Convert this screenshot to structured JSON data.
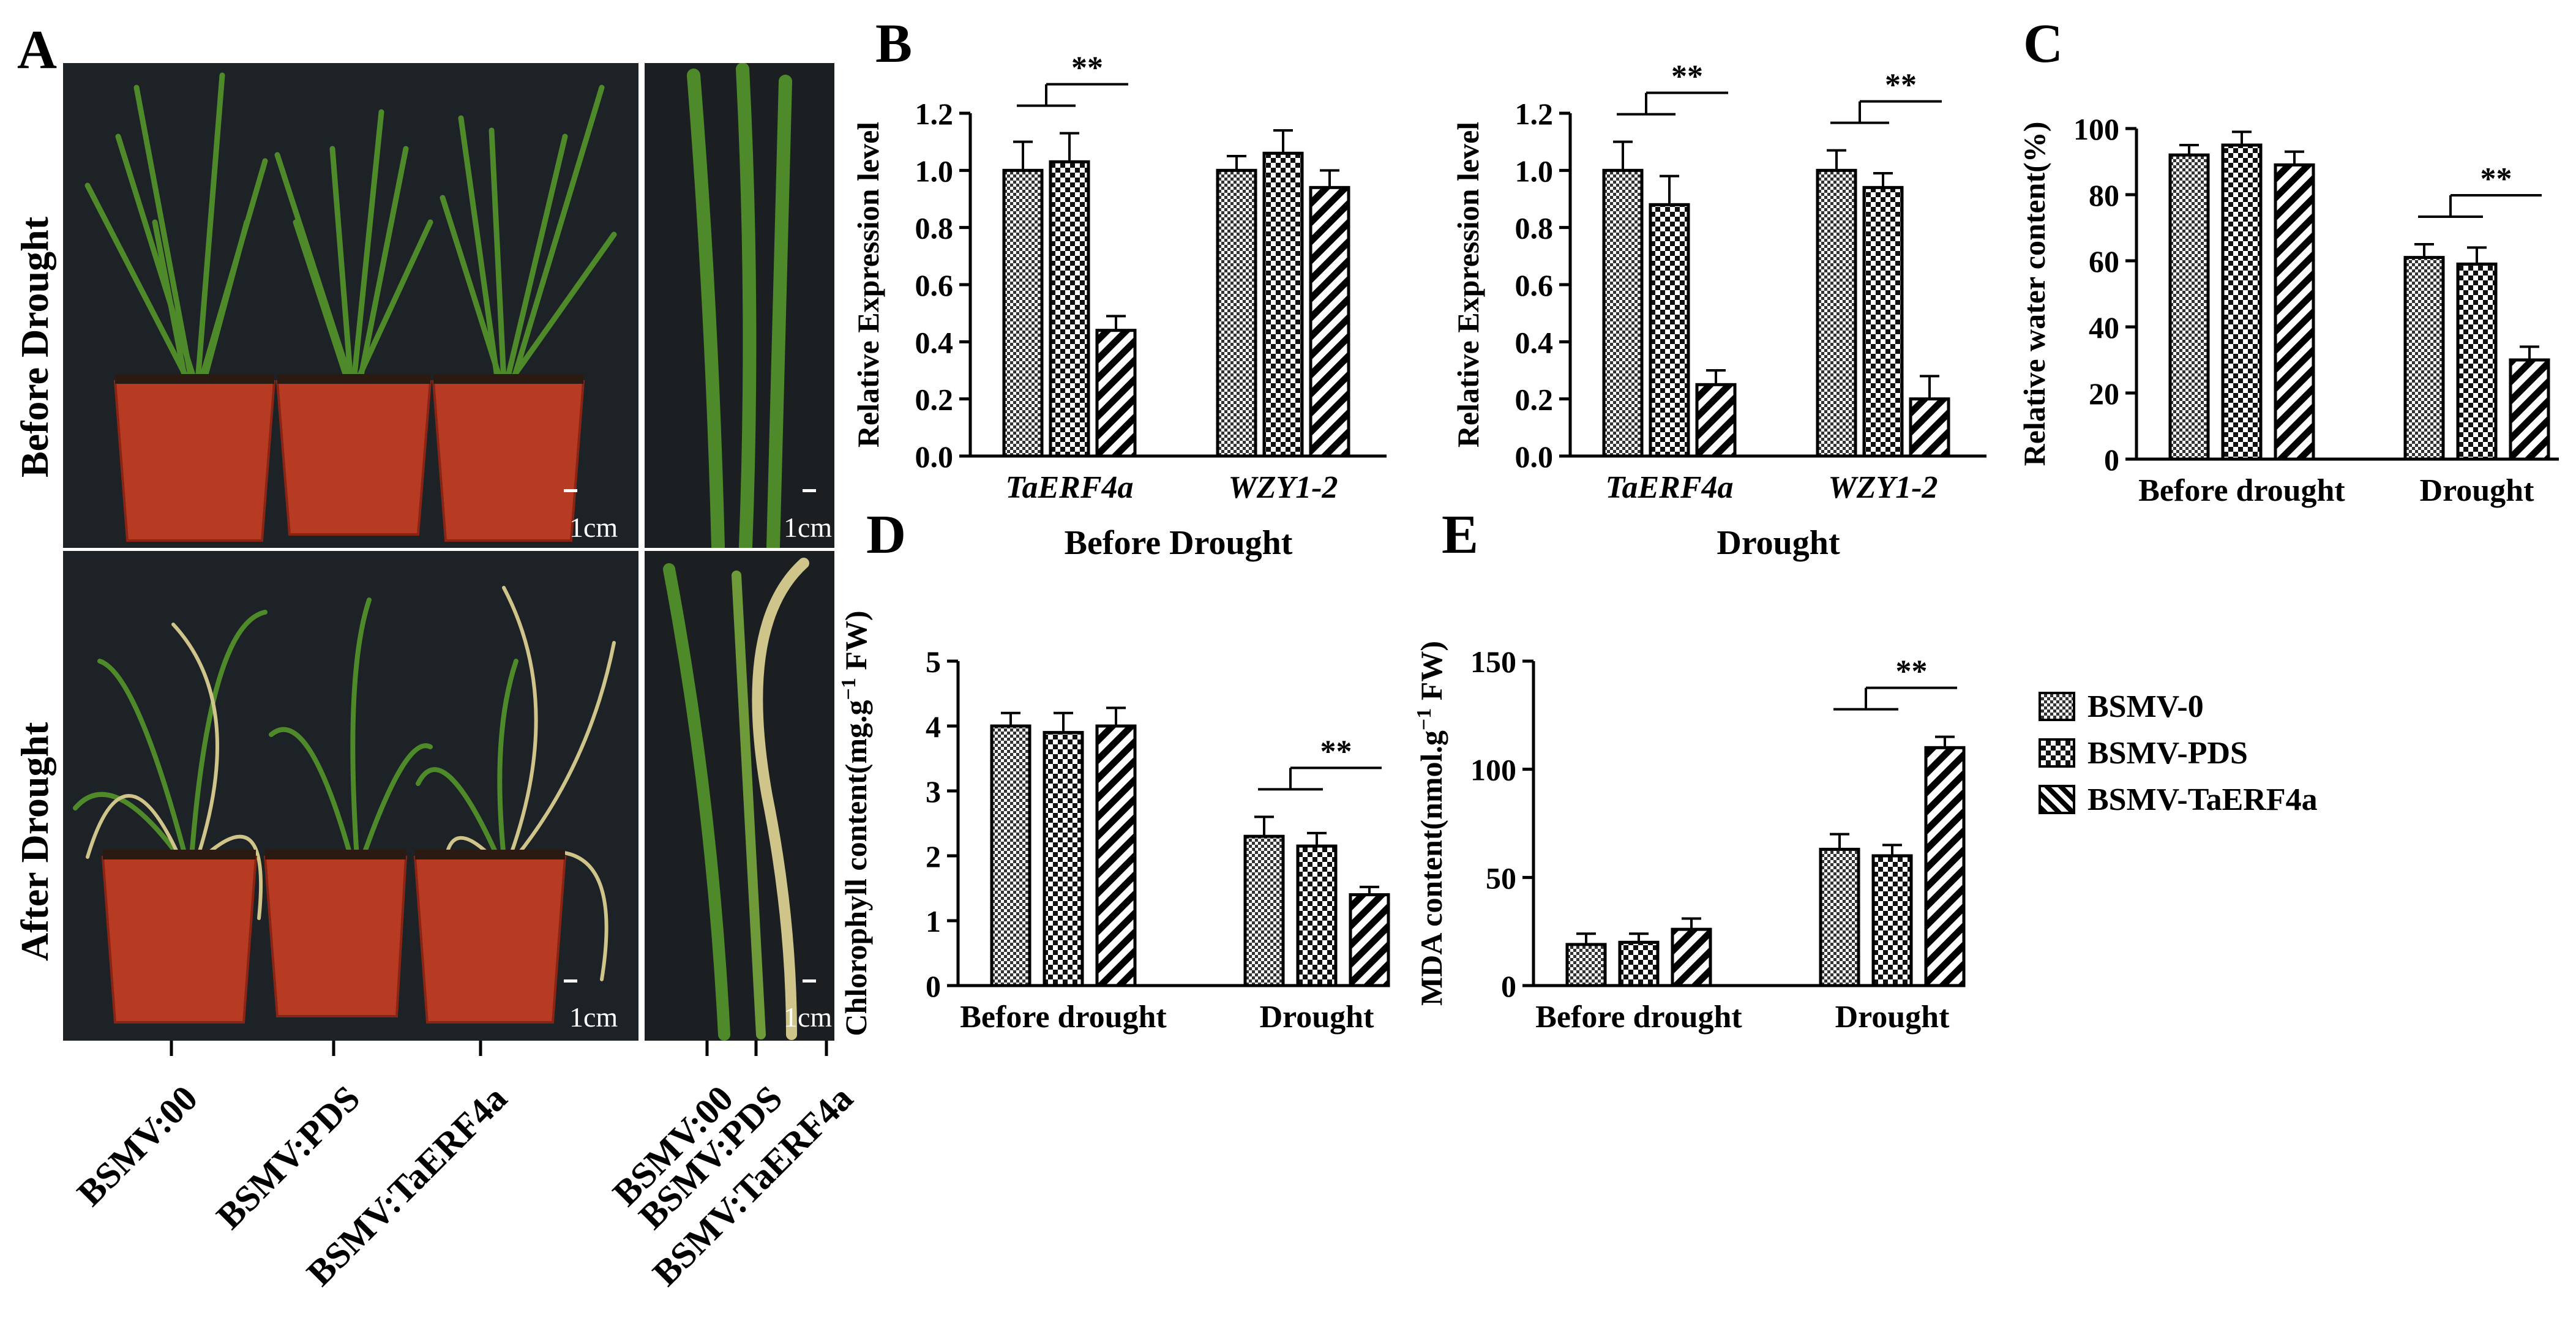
{
  "panel_letters": {
    "a": "A",
    "b": "B",
    "c": "C",
    "d": "D",
    "e": "E"
  },
  "panel_a": {
    "row_labels": [
      "Before Drought",
      "After Drought"
    ],
    "scale_bar": "1cm",
    "pot_lanes": [
      "BSMV:00",
      "BSMV:PDS",
      "BSMV:TaERF4a"
    ],
    "leaf_lanes": [
      "BSMV:00",
      "BSMV:PDS",
      "BSMV:TaERF4a"
    ]
  },
  "legend": {
    "items": [
      {
        "label": "BSMV-0",
        "pattern": "checker"
      },
      {
        "label": "BSMV-PDS",
        "pattern": "check-large"
      },
      {
        "label": "BSMV-TaERF4a",
        "pattern": "diag"
      }
    ]
  },
  "colors": {
    "bar_stroke": "#000000",
    "photo_bg": "#1d2226",
    "pot": "#b73a22",
    "leaf": "#4f8a2a",
    "dry_leaf": "#cfc48a"
  },
  "chart_data": [
    {
      "id": "B1",
      "type": "bar",
      "ylabel": "Relative Expression level",
      "xlabel": "Before Drought",
      "ylim": [
        0,
        1.2
      ],
      "yticks": [
        "0.0",
        "0.2",
        "0.4",
        "0.6",
        "0.8",
        "1.0",
        "1.2"
      ],
      "categories": [
        "TaERF4a",
        "WZY1-2"
      ],
      "category_style": "italic",
      "series": [
        {
          "name": "BSMV-0",
          "values": [
            1.0,
            1.0
          ],
          "errors": [
            0.1,
            0.05
          ]
        },
        {
          "name": "BSMV-PDS",
          "values": [
            1.03,
            1.06
          ],
          "errors": [
            0.1,
            0.08
          ]
        },
        {
          "name": "BSMV-TaERF4a",
          "values": [
            0.44,
            0.94
          ],
          "errors": [
            0.05,
            0.06
          ]
        }
      ],
      "annotations": [
        {
          "text": "**",
          "category": 0
        }
      ]
    },
    {
      "id": "B2",
      "type": "bar",
      "ylabel": "Relative Expression level",
      "xlabel": "Drought",
      "ylim": [
        0,
        1.2
      ],
      "yticks": [
        "0.0",
        "0.2",
        "0.4",
        "0.6",
        "0.8",
        "1.0",
        "1.2"
      ],
      "categories": [
        "TaERF4a",
        "WZY1-2"
      ],
      "category_style": "italic",
      "series": [
        {
          "name": "BSMV-0",
          "values": [
            1.0,
            1.0
          ],
          "errors": [
            0.1,
            0.07
          ]
        },
        {
          "name": "BSMV-PDS",
          "values": [
            0.88,
            0.94
          ],
          "errors": [
            0.1,
            0.05
          ]
        },
        {
          "name": "BSMV-TaERF4a",
          "values": [
            0.25,
            0.2
          ],
          "errors": [
            0.05,
            0.08
          ]
        }
      ],
      "annotations": [
        {
          "text": "**",
          "category": 0
        },
        {
          "text": "**",
          "category": 1
        }
      ]
    },
    {
      "id": "C",
      "type": "bar",
      "ylabel": "Relative water content(%)",
      "xlabel": "",
      "ylim": [
        0,
        100
      ],
      "yticks": [
        "0",
        "20",
        "40",
        "60",
        "80",
        "100"
      ],
      "categories": [
        "Before drought",
        "Drought"
      ],
      "category_style": "normal",
      "series": [
        {
          "name": "BSMV-0",
          "values": [
            92,
            61
          ],
          "errors": [
            3,
            4
          ]
        },
        {
          "name": "BSMV-PDS",
          "values": [
            95,
            59
          ],
          "errors": [
            4,
            5
          ]
        },
        {
          "name": "BSMV-TaERF4a",
          "values": [
            89,
            30
          ],
          "errors": [
            4,
            4
          ]
        }
      ],
      "annotations": [
        {
          "text": "**",
          "category": 1
        }
      ]
    },
    {
      "id": "D",
      "type": "bar",
      "ylabel": "Chlorophyll content(mg.g−1 FW)",
      "ylabel_main": "Chlorophyll content(mg.g",
      "ylabel_sup": "−1",
      "ylabel_tail": " FW)",
      "xlabel": "",
      "ylim": [
        0,
        5
      ],
      "yticks": [
        "0",
        "1",
        "2",
        "3",
        "4",
        "5"
      ],
      "categories": [
        "Before drought",
        "Drought"
      ],
      "category_style": "normal",
      "series": [
        {
          "name": "BSMV-0",
          "values": [
            4.0,
            2.3
          ],
          "errors": [
            0.2,
            0.3
          ]
        },
        {
          "name": "BSMV-PDS",
          "values": [
            3.9,
            2.15
          ],
          "errors": [
            0.3,
            0.2
          ]
        },
        {
          "name": "BSMV-TaERF4a",
          "values": [
            4.0,
            1.4
          ],
          "errors": [
            0.28,
            0.12
          ]
        }
      ],
      "annotations": [
        {
          "text": "**",
          "category": 1
        }
      ]
    },
    {
      "id": "E",
      "type": "bar",
      "ylabel": "MDA content(nmol.g−1 FW)",
      "ylabel_main": "MDA content(nmol.g",
      "ylabel_sup": "−1",
      "ylabel_tail": " FW)",
      "xlabel": "",
      "ylim": [
        0,
        150
      ],
      "yticks": [
        "0",
        "50",
        "100",
        "150"
      ],
      "categories": [
        "Before drought",
        "Drought"
      ],
      "category_style": "normal",
      "series": [
        {
          "name": "BSMV-0",
          "values": [
            19,
            63
          ],
          "errors": [
            5,
            7
          ]
        },
        {
          "name": "BSMV-PDS",
          "values": [
            20,
            60
          ],
          "errors": [
            4,
            5
          ]
        },
        {
          "name": "BSMV-TaERF4a",
          "values": [
            26,
            110
          ],
          "errors": [
            5,
            5
          ]
        }
      ],
      "annotations": [
        {
          "text": "**",
          "category": 1
        }
      ]
    }
  ]
}
